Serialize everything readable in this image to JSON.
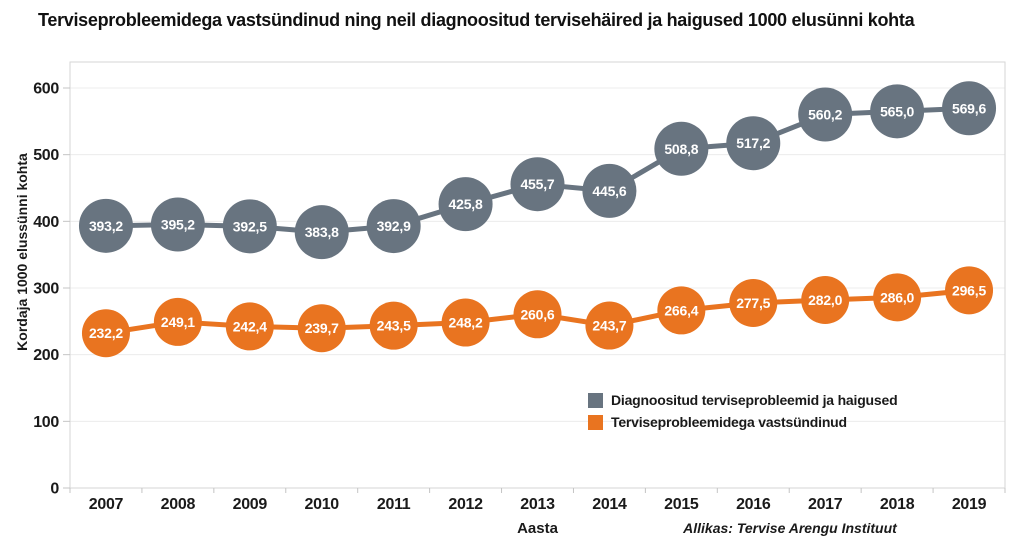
{
  "title": "Terviseprobleemidega vastsündinud ning neil diagnoositud tervisehäired ja haigused 1000 elusünni kohta",
  "chart_data": {
    "type": "line",
    "x": [
      "2007",
      "2008",
      "2009",
      "2010",
      "2011",
      "2012",
      "2013",
      "2014",
      "2015",
      "2016",
      "2017",
      "2018",
      "2019"
    ],
    "series": [
      {
        "name": "Diagnoositud terviseprobleemid ja haigused",
        "color": "#687480",
        "values": [
          393.2,
          395.2,
          392.5,
          383.8,
          392.9,
          425.8,
          455.7,
          445.6,
          508.8,
          517.2,
          560.2,
          565.0,
          569.6
        ]
      },
      {
        "name": "Terviseprobleemidega vastsündinud",
        "color": "#E97420",
        "values": [
          232.2,
          249.1,
          242.4,
          239.7,
          243.5,
          248.2,
          260.6,
          243.7,
          266.4,
          277.5,
          282.0,
          286.0,
          296.5
        ]
      }
    ],
    "xlabel": "Aasta",
    "ylabel": "Kordaja 1000 elussünni kohta",
    "ylim": [
      0,
      600
    ],
    "yticks": [
      0,
      100,
      200,
      300,
      400,
      500,
      600
    ],
    "grid": true,
    "legend_position": "inside-right",
    "decimal_separator": ",",
    "data_label_color": "#ffffff",
    "source": "Allikas: Tervise Arengu Instituut"
  }
}
